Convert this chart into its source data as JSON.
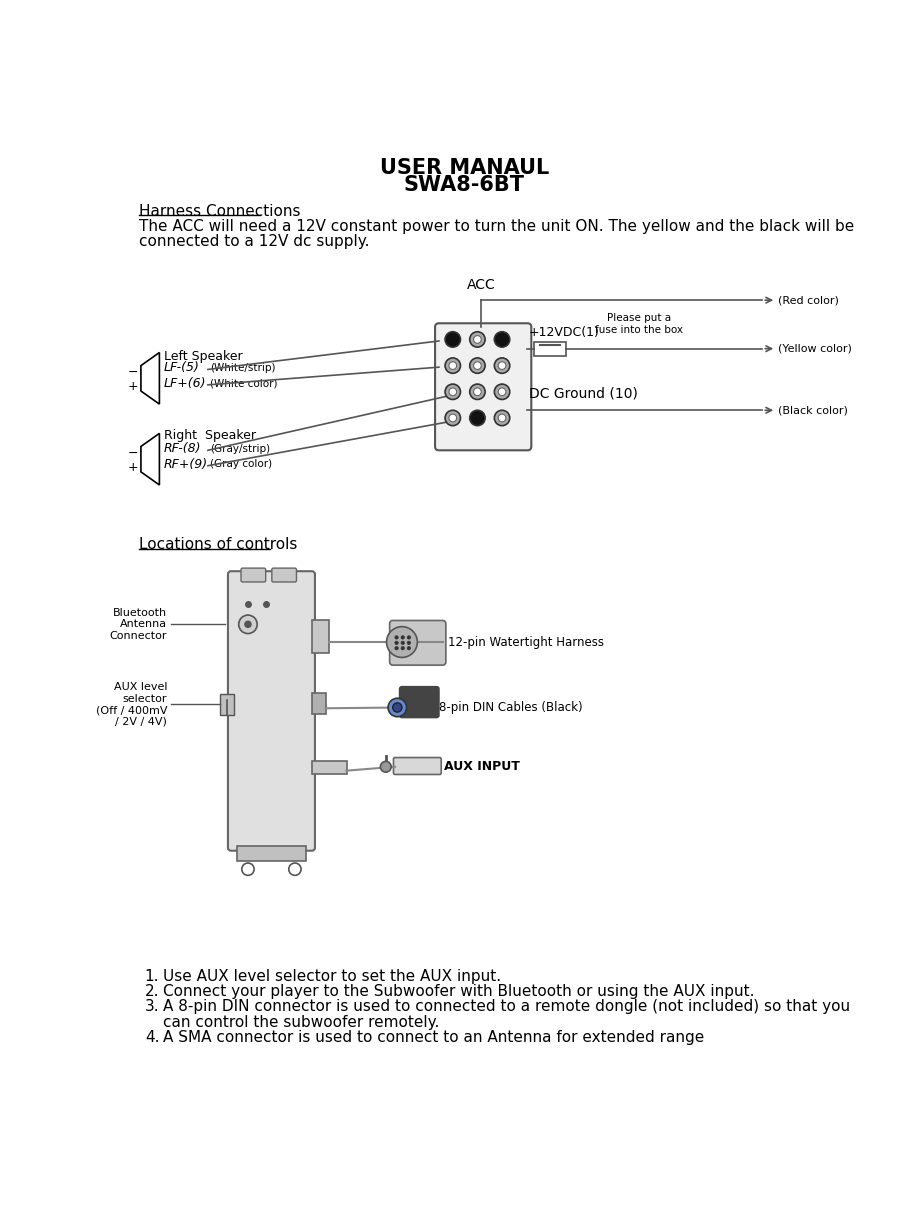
{
  "title_line1": "USER MANAUL",
  "title_line2": "SWA8-6BT",
  "section1_heading": "Harness Connections",
  "section1_text1": "The ACC will need a 12V constant power to turn the unit ON. The yellow and the black will be",
  "section1_text2": "connected to a 12V dc supply.",
  "section2_heading": "Locations of controls",
  "list_items": [
    "Use AUX level selector to set the AUX input.",
    "Connect your player to the Subwoofer with Bluetooth or using the AUX input.",
    "A 8-pin DIN connector is used to connected to a remote dongle (not included) so that you",
    "can control the subwoofer remotely.",
    "A SMA connector is used to connect to an Antenna for extended range"
  ],
  "bg_color": "#ffffff",
  "text_color": "#000000"
}
